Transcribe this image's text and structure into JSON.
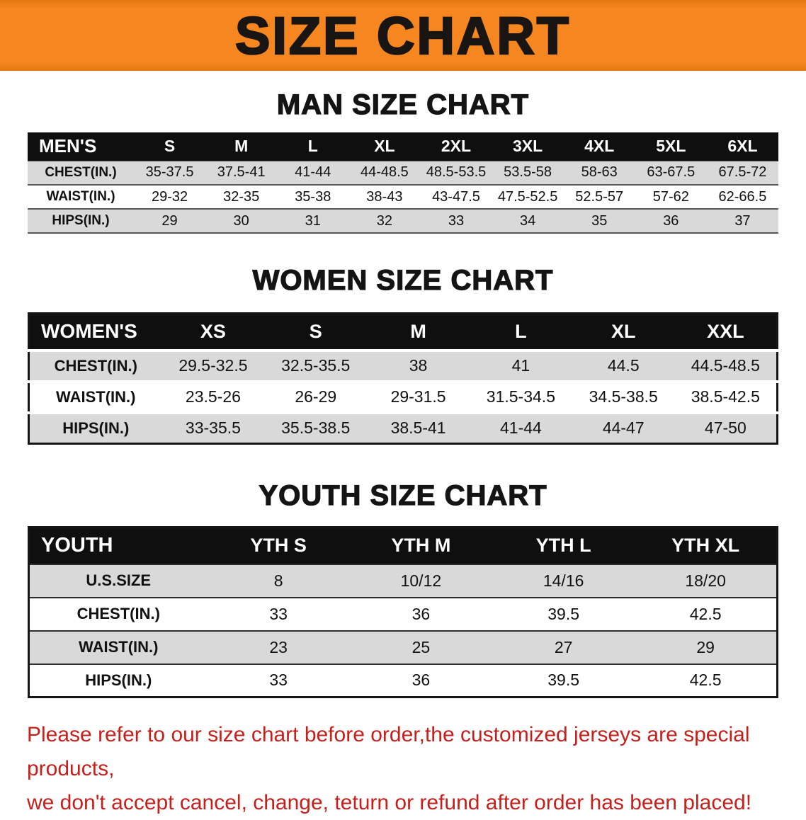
{
  "banner": {
    "title": "SIZE CHART"
  },
  "men": {
    "heading": "MAN SIZE CHART",
    "table": {
      "header": [
        "MEN'S",
        "S",
        "M",
        "L",
        "XL",
        "2XL",
        "3XL",
        "4XL",
        "5XL",
        "6XL"
      ],
      "rows": [
        [
          "CHEST(IN.)",
          "35-37.5",
          "37.5-41",
          "41-44",
          "44-48.5",
          "48.5-53.5",
          "53.5-58",
          "58-63",
          "63-67.5",
          "67.5-72"
        ],
        [
          "WAIST(IN.)",
          "29-32",
          "32-35",
          "35-38",
          "38-43",
          "43-47.5",
          "47.5-52.5",
          "52.5-57",
          "57-62",
          "62-66.5"
        ],
        [
          "HIPS(IN.)",
          "29",
          "30",
          "31",
          "32",
          "33",
          "34",
          "35",
          "36",
          "37"
        ]
      ]
    }
  },
  "women": {
    "heading": "WOMEN SIZE CHART",
    "table": {
      "header": [
        "WOMEN'S",
        "XS",
        "S",
        "M",
        "L",
        "XL",
        "XXL"
      ],
      "rows": [
        [
          "CHEST(IN.)",
          "29.5-32.5",
          "32.5-35.5",
          "38",
          "41",
          "44.5",
          "44.5-48.5"
        ],
        [
          "WAIST(IN.)",
          "23.5-26",
          "26-29",
          "29-31.5",
          "31.5-34.5",
          "34.5-38.5",
          "38.5-42.5"
        ],
        [
          "HIPS(IN.)",
          "33-35.5",
          "35.5-38.5",
          "38.5-41",
          "41-44",
          "44-47",
          "47-50"
        ]
      ]
    }
  },
  "youth": {
    "heading": "YOUTH SIZE CHART",
    "table": {
      "header": [
        "YOUTH",
        "YTH S",
        "YTH M",
        "YTH L",
        "YTH XL"
      ],
      "rows": [
        [
          "U.S.SIZE",
          "8",
          "10/12",
          "14/16",
          "18/20"
        ],
        [
          "CHEST(IN.)",
          "33",
          "36",
          "39.5",
          "42.5"
        ],
        [
          "WAIST(IN.)",
          "23",
          "25",
          "27",
          "29"
        ],
        [
          "HIPS(IN.)",
          "33",
          "36",
          "39.5",
          "42.5"
        ]
      ]
    }
  },
  "disclaimer": {
    "line1": "Please refer to our size chart before order,the customized jerseys are special products,",
    "line2": "we don't accept cancel, change, teturn or refund after order has been placed!"
  },
  "colors": {
    "banner_bg": "#f6861f",
    "header_bg": "#0f0f0f",
    "row_alt": "#d9d9d9",
    "disclaimer": "#c5201c"
  }
}
